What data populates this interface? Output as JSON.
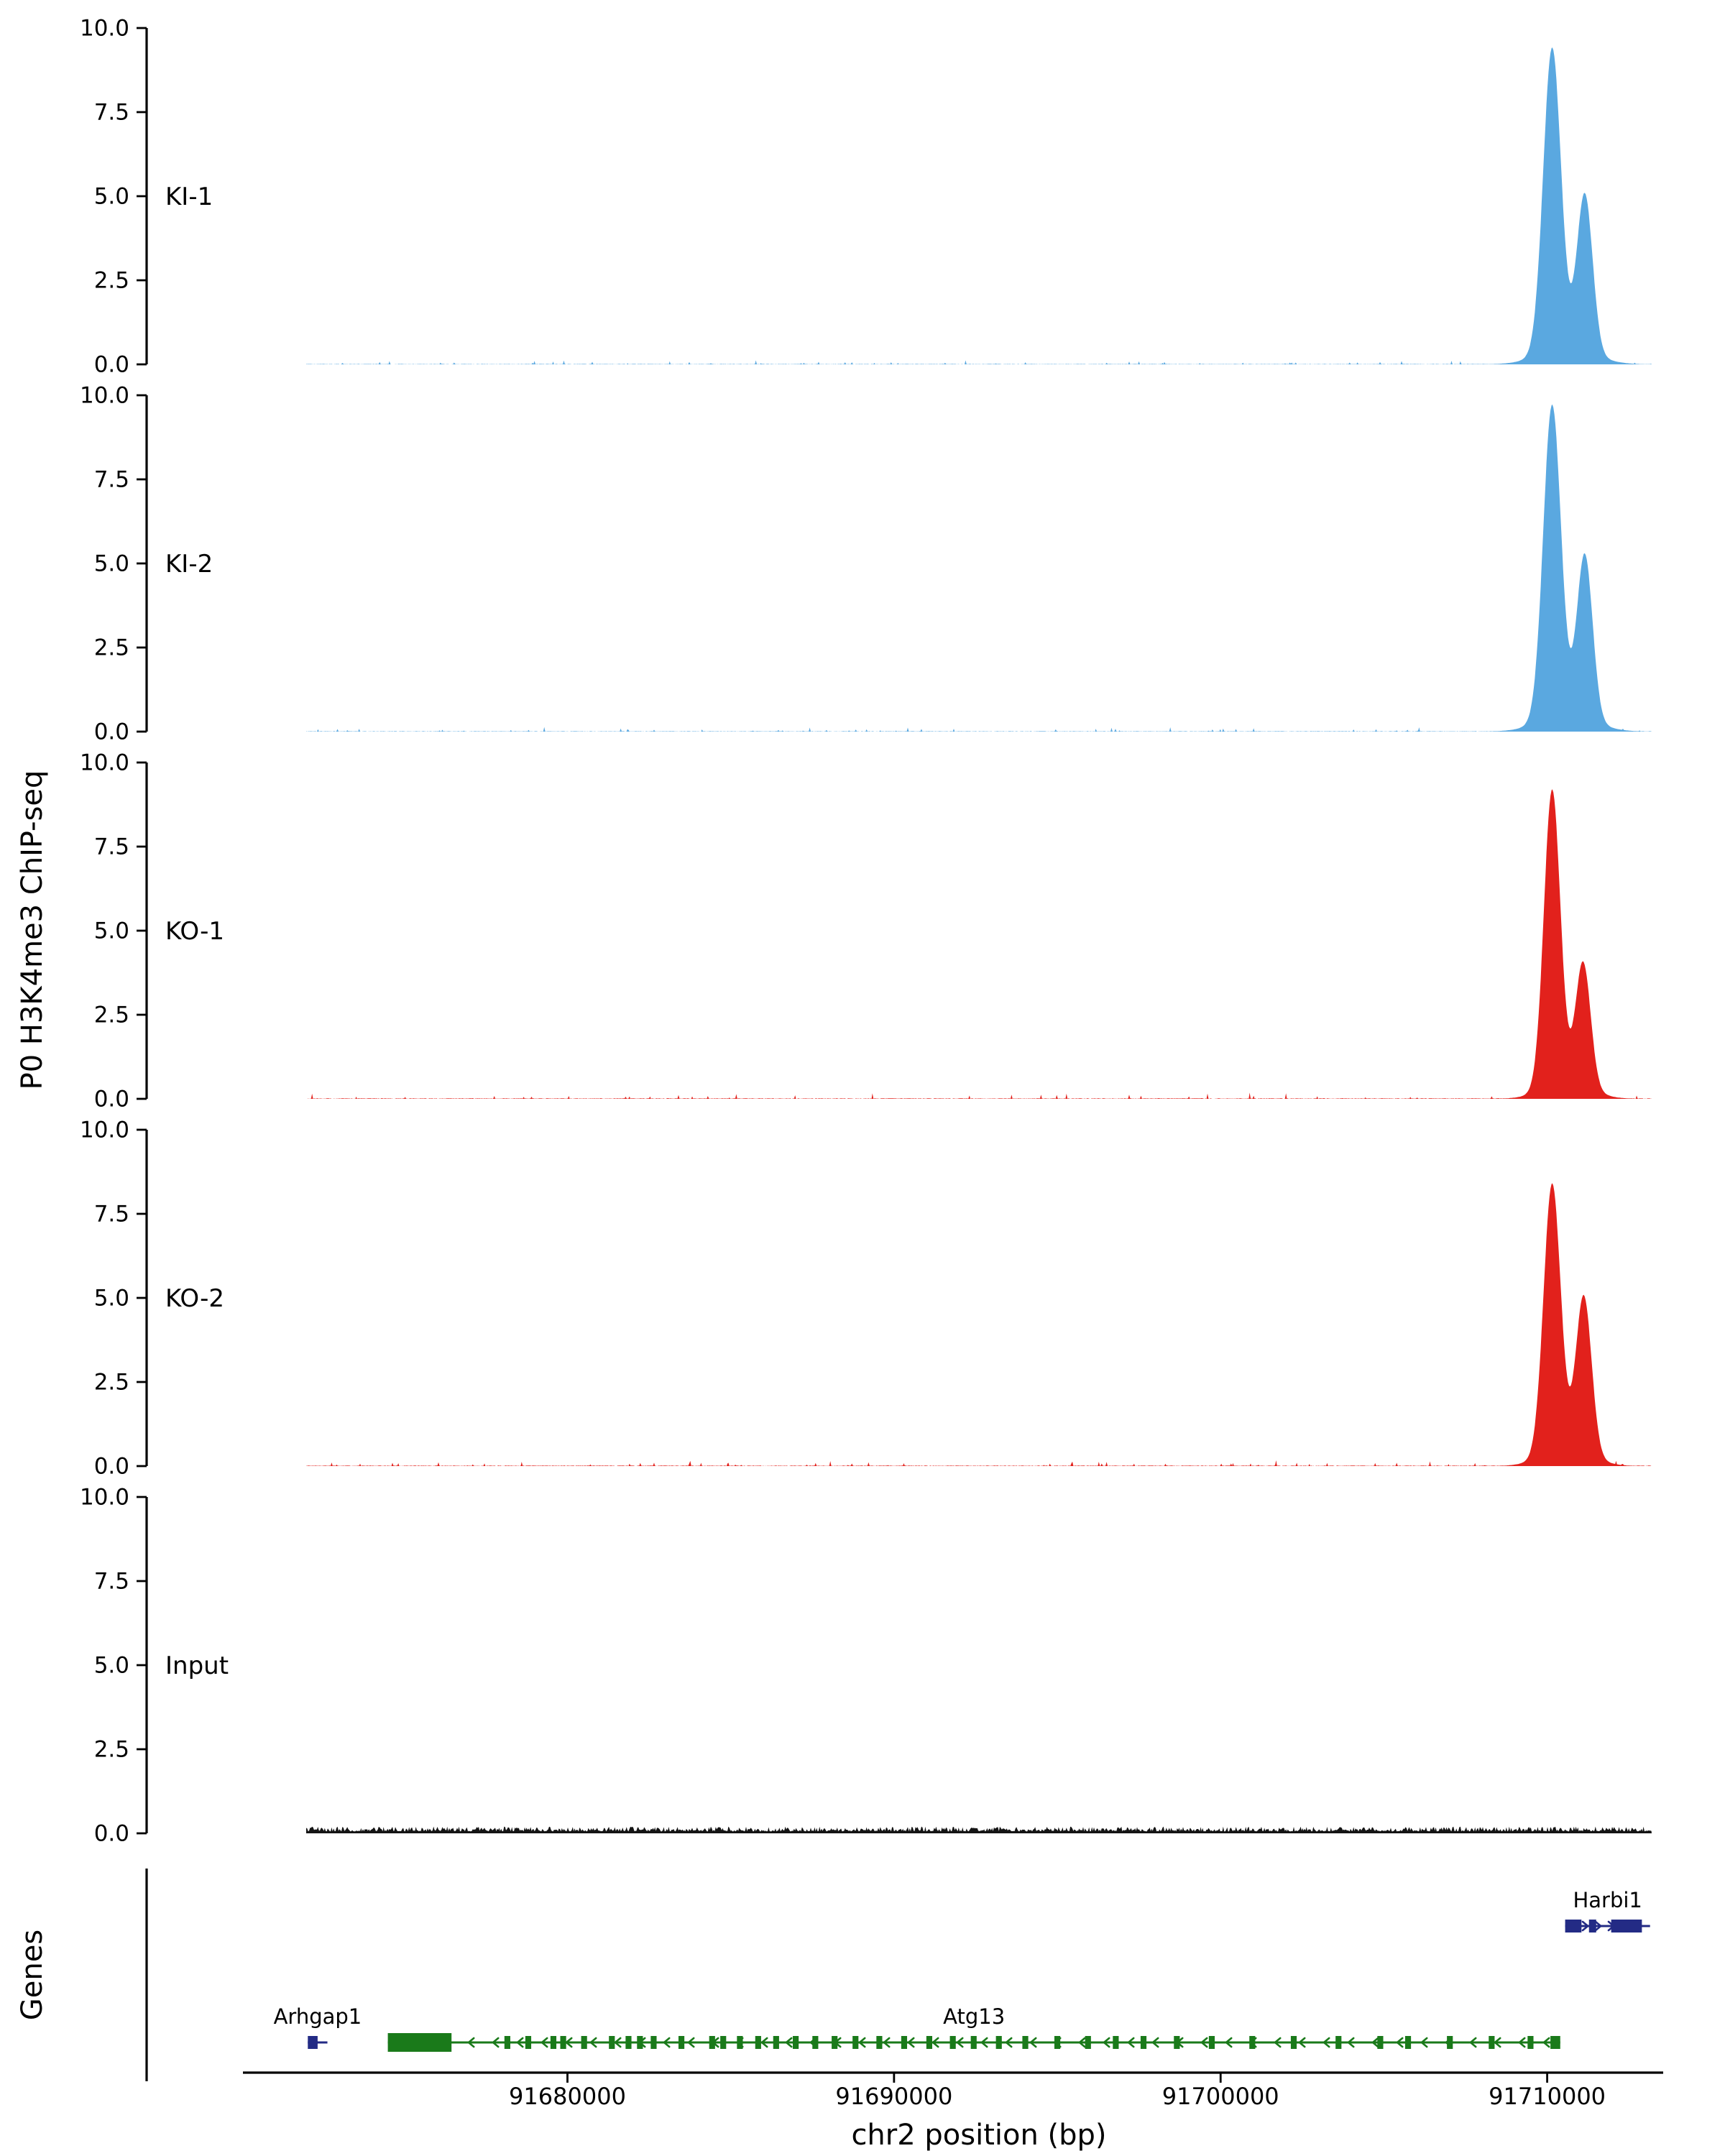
{
  "figure": {
    "y_axis_title": "P0 H3K4me3 ChIP-seq",
    "genes_axis_title": "Genes",
    "x_axis_title": "chr2 position (bp)"
  },
  "chart_data": {
    "type": "area",
    "description": "ChIP-seq coverage tracks (P0 H3K4me3) over chr2 with gene models below",
    "x_domain_bp": [
      91672000,
      91713200
    ],
    "x_ticks": [
      {
        "bp": 91680000,
        "label": "91680000"
      },
      {
        "bp": 91690000,
        "label": "91690000"
      },
      {
        "bp": 91700000,
        "label": "91700000"
      },
      {
        "bp": 91710000,
        "label": "91710000"
      }
    ],
    "ylim": [
      0,
      10.4
    ],
    "y_ticks": [
      {
        "v": 0,
        "label": "0.0"
      },
      {
        "v": 2.5,
        "label": "2.5"
      },
      {
        "v": 5,
        "label": "5.0"
      },
      {
        "v": 7.5,
        "label": "7.5"
      },
      {
        "v": 10,
        "label": "10.0"
      }
    ],
    "tracks": [
      {
        "name": "KI-1",
        "color": "#5AA8E0",
        "baseline_noise_max": 0.15,
        "peaks": [
          {
            "center_bp": 91710150,
            "sigma_bp": 270,
            "height": 9.0
          },
          {
            "center_bp": 91711150,
            "sigma_bp": 240,
            "height": 4.7
          },
          {
            "center_bp": 91710600,
            "sigma_bp": 800,
            "height": 0.5
          }
        ]
      },
      {
        "name": "KI-2",
        "color": "#5AA8E0",
        "baseline_noise_max": 0.15,
        "peaks": [
          {
            "center_bp": 91710150,
            "sigma_bp": 270,
            "height": 9.3
          },
          {
            "center_bp": 91711150,
            "sigma_bp": 240,
            "height": 4.9
          },
          {
            "center_bp": 91710600,
            "sigma_bp": 800,
            "height": 0.5
          }
        ]
      },
      {
        "name": "KO-1",
        "color": "#E2211C",
        "baseline_noise_max": 0.2,
        "peaks": [
          {
            "center_bp": 91710150,
            "sigma_bp": 250,
            "height": 8.8
          },
          {
            "center_bp": 91711100,
            "sigma_bp": 230,
            "height": 3.7
          },
          {
            "center_bp": 91710600,
            "sigma_bp": 700,
            "height": 0.5
          }
        ]
      },
      {
        "name": "KO-2",
        "color": "#E2211C",
        "baseline_noise_max": 0.2,
        "peaks": [
          {
            "center_bp": 91710150,
            "sigma_bp": 260,
            "height": 8.0
          },
          {
            "center_bp": 91711120,
            "sigma_bp": 240,
            "height": 4.7
          },
          {
            "center_bp": 91710600,
            "sigma_bp": 720,
            "height": 0.5
          }
        ]
      },
      {
        "name": "Input",
        "color": "#141414",
        "baseline_noise_max": 0.2,
        "peaks": []
      }
    ],
    "genes": [
      {
        "name": "Arhgap1",
        "start_bp": 91672050,
        "end_bp": 91672650,
        "strand": "+",
        "row": 1,
        "color": "#232B85",
        "exons": [
          [
            91672050,
            91672350
          ]
        ]
      },
      {
        "name": "Atg13",
        "start_bp": 91674500,
        "end_bp": 91710400,
        "strand": "-",
        "row": 1,
        "color": "#1A7A1A",
        "exons": [
          [
            91674500,
            91676450
          ],
          [
            91678070,
            91678250
          ],
          [
            91678710,
            91678890
          ],
          [
            91679480,
            91679660
          ],
          [
            91679780,
            91679960
          ],
          [
            91680420,
            91680600
          ],
          [
            91681270,
            91681450
          ],
          [
            91681780,
            91681960
          ],
          [
            91682130,
            91682310
          ],
          [
            91682550,
            91682730
          ],
          [
            91683400,
            91683580
          ],
          [
            91684340,
            91684520
          ],
          [
            91684680,
            91684860
          ],
          [
            91685190,
            91685370
          ],
          [
            91685750,
            91685930
          ],
          [
            91686300,
            91686480
          ],
          [
            91686900,
            91687080
          ],
          [
            91687500,
            91687680
          ],
          [
            91688090,
            91688270
          ],
          [
            91688730,
            91688910
          ],
          [
            91689460,
            91689640
          ],
          [
            91690220,
            91690400
          ],
          [
            91690990,
            91691170
          ],
          [
            91691710,
            91691890
          ],
          [
            91692350,
            91692530
          ],
          [
            91693120,
            91693300
          ],
          [
            91693930,
            91694110
          ],
          [
            91694910,
            91695090
          ],
          [
            91695850,
            91696030
          ],
          [
            91696700,
            91696880
          ],
          [
            91697550,
            91697730
          ],
          [
            91698570,
            91698750
          ],
          [
            91699640,
            91699820
          ],
          [
            91700880,
            91701060
          ],
          [
            91702150,
            91702330
          ],
          [
            91703520,
            91703700
          ],
          [
            91704800,
            91704980
          ],
          [
            91705650,
            91705830
          ],
          [
            91706930,
            91707110
          ],
          [
            91708210,
            91708390
          ],
          [
            91709400,
            91709580
          ],
          [
            91710100,
            91710400
          ]
        ]
      },
      {
        "name": "Harbi1",
        "start_bp": 91710550,
        "end_bp": 91713150,
        "strand": "+",
        "row": 0,
        "color": "#232B85",
        "exons": [
          [
            91710550,
            91711050
          ],
          [
            91711280,
            91711500
          ],
          [
            91711960,
            91712900
          ]
        ]
      }
    ]
  }
}
